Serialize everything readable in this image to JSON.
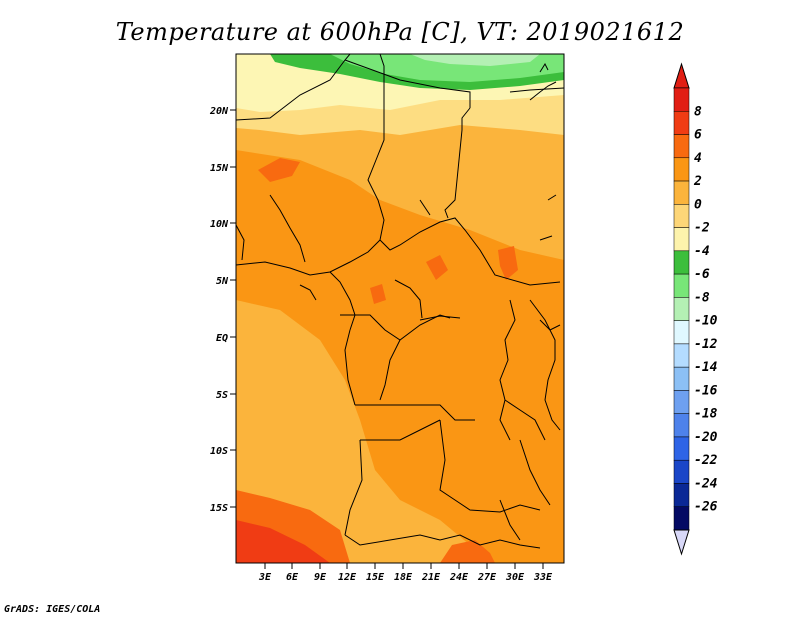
{
  "title": "Temperature at 600hPa [C], VT: 2019021612",
  "footer": "GrADS: IGES/COLA",
  "colors": {
    "orange_dark": "#f86a10",
    "orange": "#fa9614",
    "orange_light": "#fbb43c",
    "yellow": "#fddd82",
    "cream": "#fdf6b4",
    "green_dark": "#3cbe3c",
    "green": "#78e678",
    "green_light": "#b4f0b4"
  },
  "map": {
    "lat_labels": [
      "20N",
      "15N",
      "10N",
      "5N",
      "EQ",
      "5S",
      "10S",
      "15S"
    ],
    "lon_labels": [
      "3E",
      "6E",
      "9E",
      "12E",
      "15E",
      "18E",
      "21E",
      "24E",
      "27E",
      "30E",
      "33E"
    ]
  },
  "colorbar": {
    "labels": [
      "8",
      "6",
      "4",
      "2",
      "0",
      "-2",
      "-4",
      "-6",
      "-8",
      "-10",
      "-12",
      "-14",
      "-16",
      "-18",
      "-20",
      "-22",
      "-24",
      "-26"
    ],
    "colors": [
      "#e11e14",
      "#f03c14",
      "#f86a10",
      "#fa9614",
      "#fbb43c",
      "#fdd678",
      "#fdf3ac",
      "#3cbe3c",
      "#78e678",
      "#b4f0b4",
      "#e0f8ff",
      "#b4dcff",
      "#8cc0f5",
      "#6ea0f0",
      "#4e82eb",
      "#2e64e6",
      "#1a46c8",
      "#0a2896",
      "#040a64"
    ],
    "over_color": "#e11e14",
    "under_color": "#d8d8f8"
  }
}
